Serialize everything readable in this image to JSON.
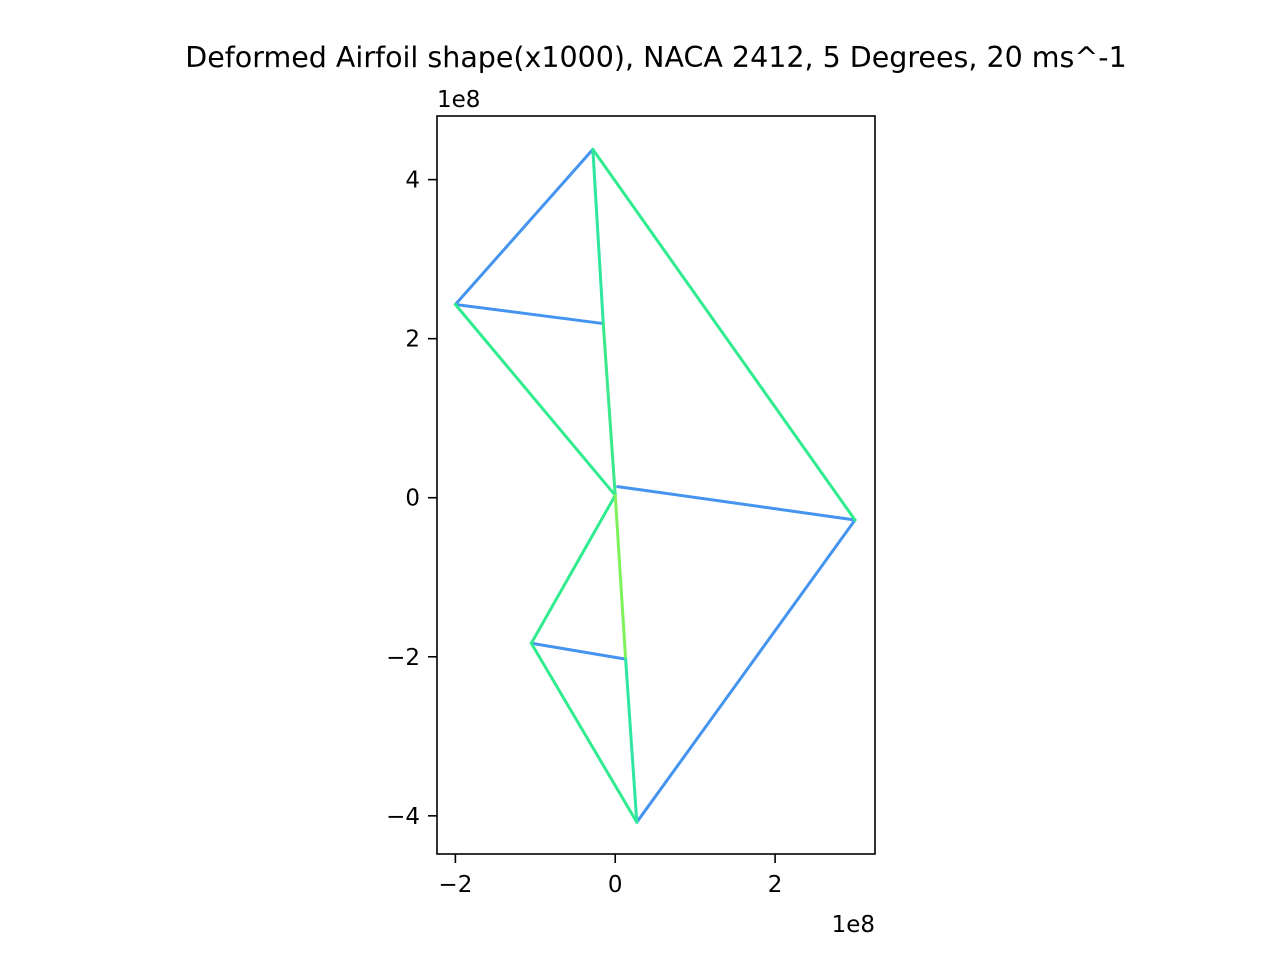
{
  "chart_data": {
    "type": "line",
    "title": "Deformed Airfoil shape(x1000), NACA 2412, 5 Degrees, 20 ms^-1",
    "xlabel": "",
    "ylabel": "",
    "x_offset_text": "1e8",
    "y_offset_text": "1e8",
    "x_scale": 100000000,
    "y_scale": 100000000,
    "xlim": [
      -2.23,
      3.25
    ],
    "ylim": [
      -4.48,
      4.8
    ],
    "xticks": [
      {
        "value": -2,
        "label": "−2"
      },
      {
        "value": 0,
        "label": "0"
      },
      {
        "value": 2,
        "label": "2"
      }
    ],
    "yticks": [
      {
        "value": -4,
        "label": "−4"
      },
      {
        "value": -2,
        "label": "−2"
      },
      {
        "value": 0,
        "label": "0"
      },
      {
        "value": 2,
        "label": "2"
      },
      {
        "value": 4,
        "label": "4"
      }
    ],
    "grid": false,
    "legend": "none",
    "aspect": "equal",
    "nodes": {
      "N1": [
        -0.28,
        4.38
      ],
      "N2": [
        -2.0,
        2.43
      ],
      "N3": [
        -0.15,
        2.19
      ],
      "N4": [
        0.0,
        0.03
      ],
      "N5": [
        0.03,
        0.14
      ],
      "N6": [
        3.0,
        -0.28
      ],
      "N7": [
        -1.05,
        -1.83
      ],
      "N8": [
        0.13,
        -2.03
      ],
      "N9": [
        0.27,
        -4.08
      ]
    },
    "segments": [
      {
        "from": "N1",
        "to": "N2",
        "color": "#4594f0"
      },
      {
        "from": "N2",
        "to": "N3",
        "color": "#4594f0"
      },
      {
        "from": "N5",
        "to": "N6",
        "color": "#4594f0"
      },
      {
        "from": "N6",
        "to": "N9",
        "color": "#4594f0"
      },
      {
        "from": "N7",
        "to": "N8",
        "color": "#4594f0"
      },
      {
        "from": "N1",
        "to": "N6",
        "color": "#30ec8e"
      },
      {
        "from": "N2",
        "to": "N4",
        "color": "#30ec8e"
      },
      {
        "from": "N4",
        "to": "N7",
        "color": "#30ec8e"
      },
      {
        "from": "N7",
        "to": "N9",
        "color": "#30ec8e"
      },
      {
        "from": "N1",
        "to": "N3",
        "color": "#2ee69c"
      },
      {
        "from": "N3",
        "to": "N4",
        "color": "#3ae98b"
      },
      {
        "from": "N4",
        "to": "N8",
        "color": "#7df25a"
      },
      {
        "from": "N8",
        "to": "N9",
        "color": "#2ee6a2"
      }
    ]
  }
}
